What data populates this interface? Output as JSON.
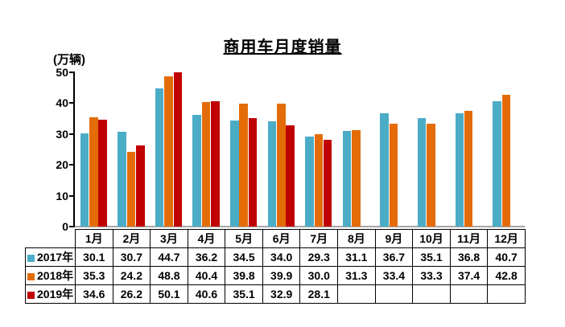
{
  "chart_data": {
    "type": "bar",
    "title": "商用车月度销量",
    "ylabel": "(万辆)",
    "xlabel": "",
    "categories": [
      "1月",
      "2月",
      "3月",
      "4月",
      "5月",
      "6月",
      "7月",
      "8月",
      "9月",
      "10月",
      "11月",
      "12月"
    ],
    "series": [
      {
        "name": "2017年",
        "color": "#4BACC6",
        "values": [
          30.1,
          30.7,
          44.7,
          36.2,
          34.5,
          34.0,
          29.3,
          31.1,
          36.7,
          35.1,
          36.8,
          40.7
        ]
      },
      {
        "name": "2018年",
        "color": "#E36C09",
        "values": [
          35.3,
          24.2,
          48.8,
          40.4,
          39.8,
          39.9,
          30.0,
          31.3,
          33.4,
          33.3,
          37.4,
          42.8
        ]
      },
      {
        "name": "2019年",
        "color": "#C00000",
        "values": [
          34.6,
          26.2,
          50.1,
          40.6,
          35.1,
          32.9,
          28.1,
          null,
          null,
          null,
          null,
          null
        ]
      }
    ],
    "ylim": [
      0,
      50
    ],
    "yticks": [
      0,
      10,
      20,
      30,
      40,
      50
    ],
    "grid": false,
    "legend_position": "data-table-left-column",
    "value_format": "one-decimal",
    "axis_line_color": "#000000",
    "baseline_color": "#A6A6A6"
  }
}
